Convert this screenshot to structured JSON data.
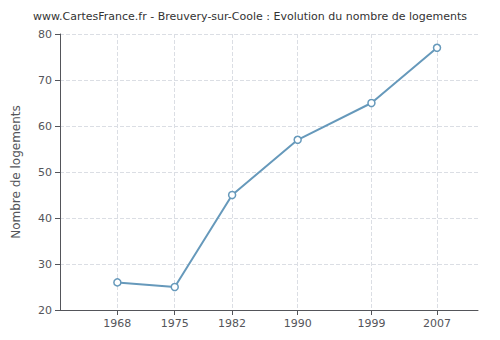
{
  "chart_data": {
    "type": "line",
    "title": "www.CartesFrance.fr - Breuvery-sur-Coole : Evolution du nombre de logements",
    "ylabel": "Nombre de logements",
    "x": [
      1968,
      1975,
      1982,
      1990,
      1999,
      2007
    ],
    "values": [
      26,
      25,
      45,
      57,
      65,
      77
    ],
    "color": "#6699bb",
    "marker": "circle",
    "xlim": [
      1961,
      2012
    ],
    "xticks": [
      1968,
      1975,
      1982,
      1990,
      1999,
      2007
    ],
    "ylim": [
      20,
      80
    ],
    "yticks": [
      20,
      30,
      40,
      50,
      60,
      70,
      80
    ],
    "grid": true
  }
}
